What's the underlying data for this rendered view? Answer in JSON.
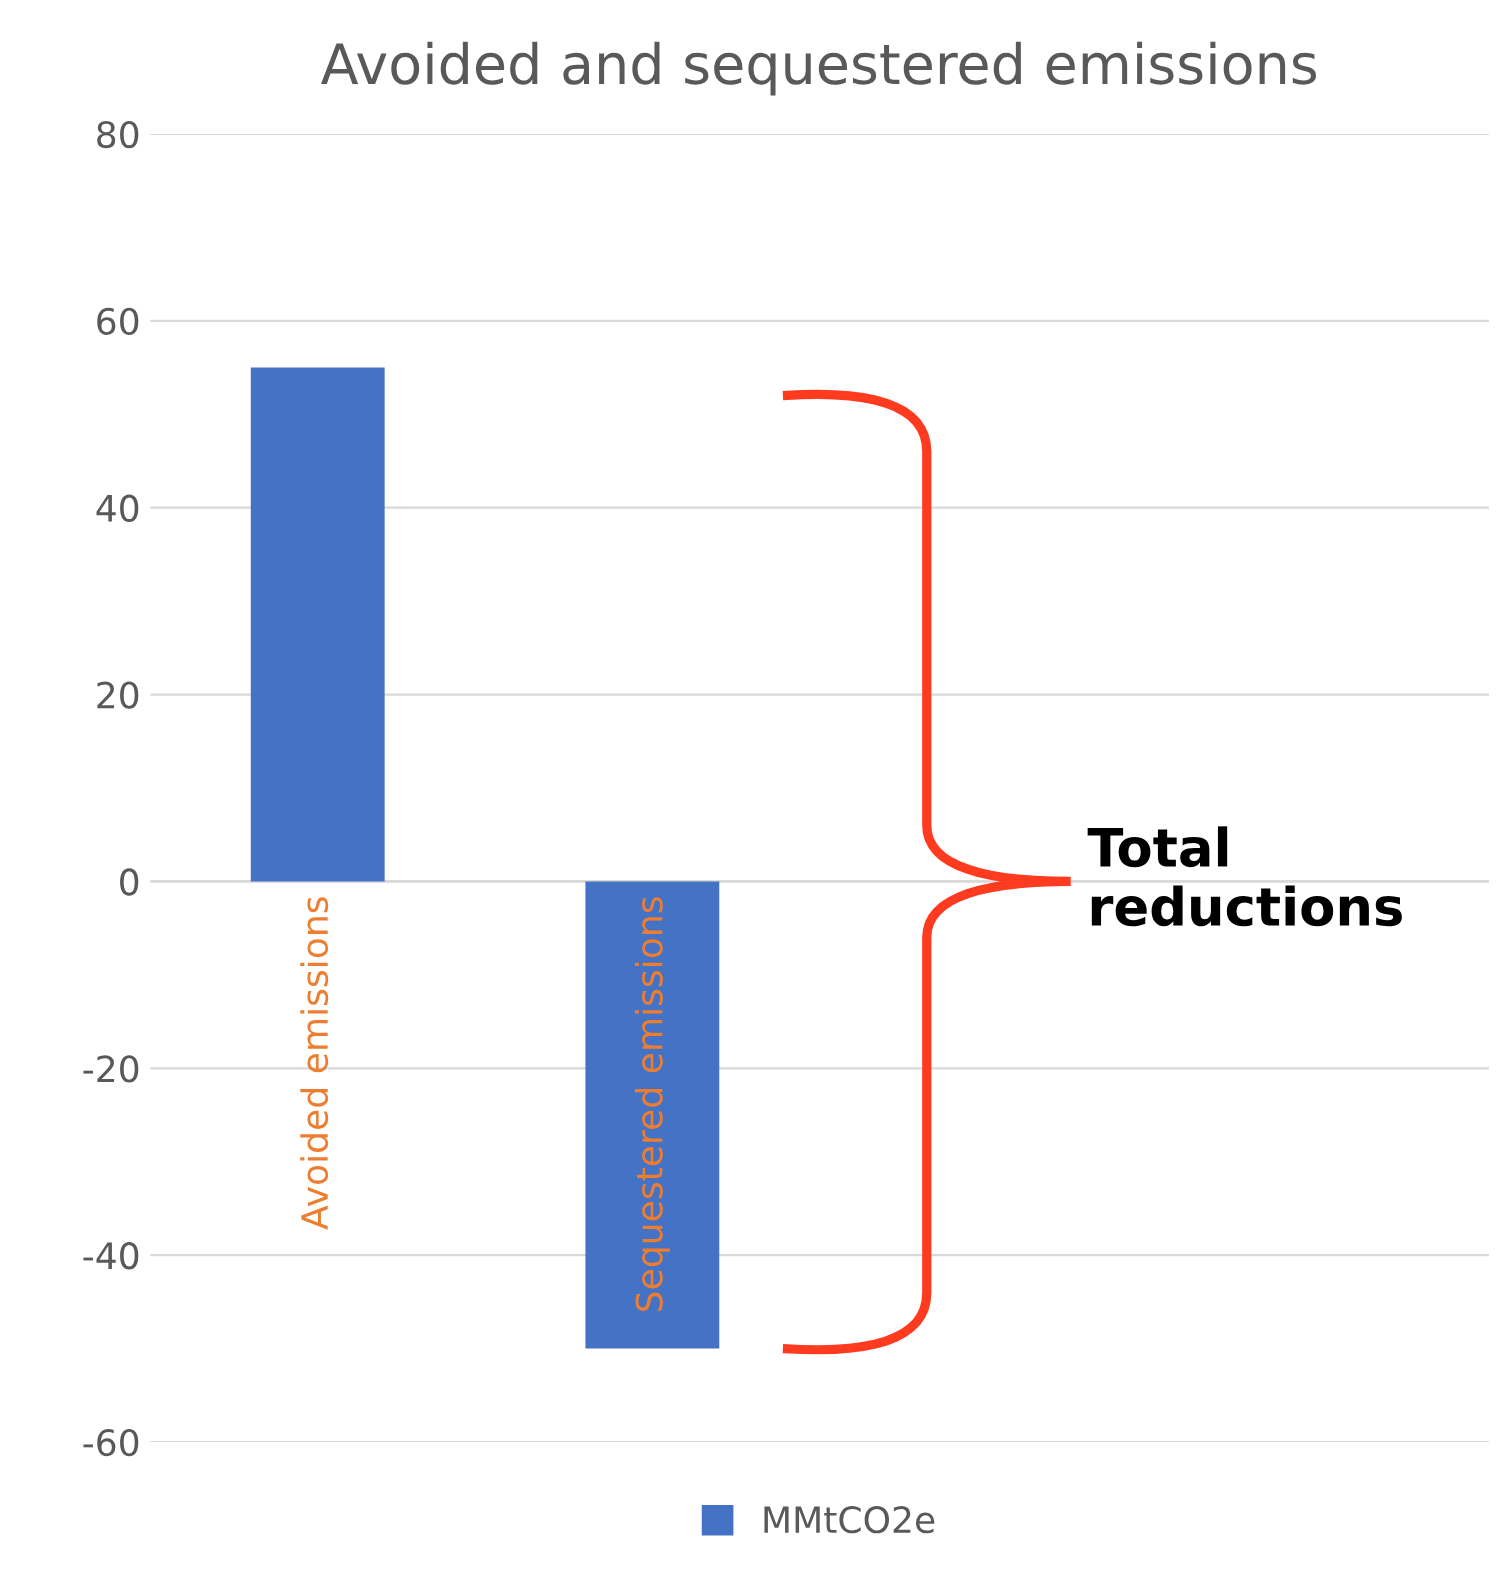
{
  "chart_data": {
    "type": "bar",
    "title": "Avoided and sequestered emissions",
    "categories": [
      "Avoided emissions",
      "Sequestered emissions",
      null,
      null
    ],
    "series": [
      {
        "name": "MMtCO2e",
        "color": "#4472c4",
        "values": [
          55,
          -50,
          null,
          null
        ]
      }
    ],
    "ylim": [
      -60,
      80
    ],
    "yticks": [
      -60,
      -40,
      -20,
      0,
      20,
      40,
      60,
      80
    ],
    "grid": "y",
    "legend": "bottom",
    "annotations": [
      "Total\nreductions"
    ]
  }
}
